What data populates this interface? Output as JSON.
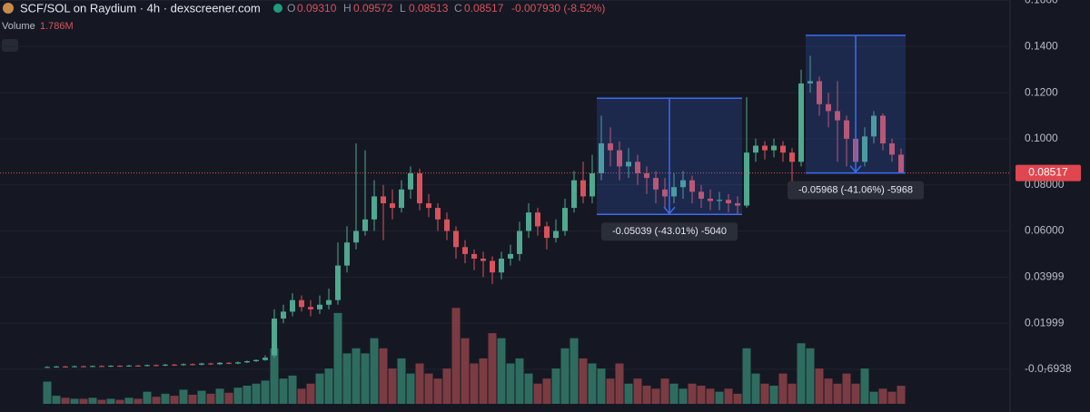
{
  "chart_data": {
    "type": "candlestick",
    "header": {
      "pair": "SCF/SOL on Raydium · 4h · dexscreener.com",
      "o_key": "O",
      "o": "0.09310",
      "h_key": "H",
      "h": "0.09572",
      "l_key": "L",
      "l": "0.08513",
      "c_key": "C",
      "c": "0.08517",
      "change": "-0.007930 (-8.52%)"
    },
    "volume_title": "Volume",
    "volume_label": "1.786M",
    "colors": {
      "up": "#4fa88f",
      "down": "#d8525b",
      "up_volume": "#2f6c60",
      "down_volume": "#7b3b42",
      "measure": "#3d6cf0"
    },
    "ylim": [
      -0.015,
      0.1602
    ],
    "volume_lim": [
      0,
      40
    ],
    "yticks": [
      {
        "value": 0.16,
        "label": "0.1600"
      },
      {
        "value": 0.14,
        "label": "0.1400"
      },
      {
        "value": 0.12,
        "label": "0.1200"
      },
      {
        "value": 0.1,
        "label": "0.1000"
      },
      {
        "value": 0.08,
        "label": "0.08000"
      },
      {
        "value": 0.06,
        "label": "0.06000"
      },
      0.03999,
      0.01999,
      {
        "value": -6.938e-08,
        "label": "-0.0₇6938"
      }
    ],
    "grid": true,
    "open": [
      0.0009,
      0.001,
      0.0012,
      0.0011,
      0.0013,
      0.0012,
      0.0014,
      0.0013,
      0.0015,
      0.0014,
      0.0016,
      0.0015,
      0.0018,
      0.0016,
      0.002,
      0.0018,
      0.0022,
      0.002,
      0.0025,
      0.0022,
      0.0028,
      0.0025,
      0.003,
      0.0035,
      0.004,
      0.006,
      0.022,
      0.025,
      0.03,
      0.027,
      0.026,
      0.028,
      0.03,
      0.045,
      0.055,
      0.06,
      0.065,
      0.075,
      0.072,
      0.07,
      0.078,
      0.085,
      0.072,
      0.07,
      0.065,
      0.06,
      0.053,
      0.05,
      0.048,
      0.047,
      0.042,
      0.048,
      0.05,
      0.06,
      0.068,
      0.062,
      0.057,
      0.06,
      0.07,
      0.082,
      0.075,
      0.085,
      0.098,
      0.095,
      0.088,
      0.09,
      0.085,
      0.083,
      0.078,
      0.075,
      0.079,
      0.082,
      0.077,
      0.074,
      0.073,
      0.0735,
      0.072,
      0.071,
      0.094,
      0.097,
      0.095,
      0.097,
      0.094,
      0.09,
      0.124,
      0.125,
      0.115,
      0.112,
      0.108,
      0.1,
      0.09,
      0.101,
      0.11,
      0.098,
      0.0931
    ],
    "high": [
      0.0013,
      0.0015,
      0.0015,
      0.0016,
      0.0016,
      0.0017,
      0.0017,
      0.0018,
      0.0018,
      0.0019,
      0.0019,
      0.0021,
      0.0021,
      0.0023,
      0.0023,
      0.0025,
      0.0025,
      0.0028,
      0.0028,
      0.0031,
      0.0031,
      0.0033,
      0.0038,
      0.0043,
      0.006,
      0.026,
      0.028,
      0.033,
      0.032,
      0.03,
      0.032,
      0.035,
      0.055,
      0.062,
      0.098,
      0.095,
      0.082,
      0.08,
      0.078,
      0.082,
      0.088,
      0.087,
      0.076,
      0.072,
      0.068,
      0.062,
      0.056,
      0.052,
      0.051,
      0.049,
      0.051,
      0.054,
      0.064,
      0.072,
      0.07,
      0.064,
      0.065,
      0.074,
      0.086,
      0.09,
      0.093,
      0.11,
      0.105,
      0.099,
      0.096,
      0.093,
      0.088,
      0.086,
      0.083,
      0.085,
      0.086,
      0.084,
      0.08,
      0.078,
      0.077,
      0.076,
      0.075,
      0.118,
      0.1,
      0.099,
      0.1,
      0.099,
      0.096,
      0.13,
      0.136,
      0.127,
      0.12,
      0.125,
      0.11,
      0.102,
      0.105,
      0.112,
      0.111,
      0.1,
      0.09572
    ],
    "low": [
      0.0006,
      0.0007,
      0.0008,
      0.0008,
      0.0009,
      0.0009,
      0.001,
      0.001,
      0.0011,
      0.0011,
      0.0012,
      0.0012,
      0.0013,
      0.0013,
      0.0015,
      0.0015,
      0.0017,
      0.0017,
      0.0019,
      0.0019,
      0.0022,
      0.0022,
      0.0027,
      0.0032,
      0.0037,
      0.005,
      0.02,
      0.023,
      0.025,
      0.023,
      0.024,
      0.026,
      0.028,
      0.042,
      0.052,
      0.058,
      0.06,
      0.056,
      0.065,
      0.068,
      0.074,
      0.069,
      0.066,
      0.06,
      0.056,
      0.048,
      0.046,
      0.043,
      0.04,
      0.037,
      0.039,
      0.045,
      0.047,
      0.057,
      0.058,
      0.052,
      0.055,
      0.058,
      0.068,
      0.072,
      0.072,
      0.082,
      0.088,
      0.082,
      0.083,
      0.08,
      0.076,
      0.072,
      0.07,
      0.072,
      0.074,
      0.072,
      0.07,
      0.069,
      0.069,
      0.068,
      0.067,
      0.07,
      0.09,
      0.091,
      0.092,
      0.09,
      0.08,
      0.088,
      0.12,
      0.11,
      0.105,
      0.09,
      0.088,
      0.086,
      0.088,
      0.098,
      0.095,
      0.09,
      0.08513
    ],
    "close": [
      0.001,
      0.0012,
      0.0011,
      0.0013,
      0.0012,
      0.0014,
      0.0013,
      0.0015,
      0.0014,
      0.0016,
      0.0015,
      0.0018,
      0.0016,
      0.002,
      0.0018,
      0.0022,
      0.002,
      0.0025,
      0.0022,
      0.0028,
      0.0025,
      0.003,
      0.0035,
      0.004,
      0.005,
      0.022,
      0.025,
      0.03,
      0.027,
      0.026,
      0.028,
      0.03,
      0.045,
      0.055,
      0.06,
      0.065,
      0.075,
      0.072,
      0.07,
      0.078,
      0.085,
      0.072,
      0.07,
      0.065,
      0.06,
      0.053,
      0.05,
      0.048,
      0.047,
      0.042,
      0.048,
      0.05,
      0.06,
      0.068,
      0.062,
      0.057,
      0.06,
      0.07,
      0.082,
      0.075,
      0.085,
      0.098,
      0.095,
      0.088,
      0.09,
      0.085,
      0.083,
      0.078,
      0.075,
      0.079,
      0.082,
      0.077,
      0.074,
      0.073,
      0.0735,
      0.072,
      0.071,
      0.094,
      0.097,
      0.095,
      0.097,
      0.094,
      0.09,
      0.124,
      0.125,
      0.115,
      0.112,
      0.108,
      0.1,
      0.09,
      0.101,
      0.11,
      0.098,
      0.0931,
      0.08517
    ],
    "volume": [
      2.2,
      0.8,
      0.6,
      0.5,
      0.5,
      0.6,
      0.4,
      0.5,
      0.4,
      0.6,
      0.5,
      1.2,
      0.7,
      1.0,
      0.8,
      1.4,
      0.9,
      1.3,
      1.0,
      1.5,
      1.1,
      1.6,
      1.8,
      2.0,
      2.3,
      5.5,
      2.5,
      2.8,
      1.5,
      2.0,
      3.0,
      3.5,
      9.0,
      5.0,
      5.5,
      5.0,
      6.5,
      5.5,
      3.5,
      4.5,
      3.0,
      4.0,
      3.0,
      2.5,
      3.5,
      9.5,
      6.5,
      4.0,
      4.5,
      7.0,
      6.5,
      4.0,
      4.5,
      3.0,
      2.0,
      2.5,
      3.5,
      5.5,
      6.5,
      4.5,
      4.0,
      3.5,
      2.5,
      4.0,
      2.0,
      2.5,
      1.8,
      1.5,
      2.5,
      2.0,
      1.5,
      2.0,
      1.8,
      1.5,
      1.2,
      1.5,
      1.0,
      5.5,
      3.0,
      2.0,
      1.8,
      3.0,
      2.0,
      6.0,
      5.5,
      3.5,
      2.5,
      2.0,
      3.0,
      2.0,
      3.5,
      1.2,
      1.5,
      1.2,
      1.786
    ],
    "measurements": [
      {
        "start": 61,
        "end": 76,
        "top": 0.1176,
        "bottom": 0.06721,
        "label": "-0.05039 (-43.01%) -5040"
      },
      {
        "start": 84,
        "end": 94,
        "top": 0.14485,
        "bottom": 0.08517,
        "label": "-0.05968 (-41.06%) -5968"
      }
    ]
  }
}
